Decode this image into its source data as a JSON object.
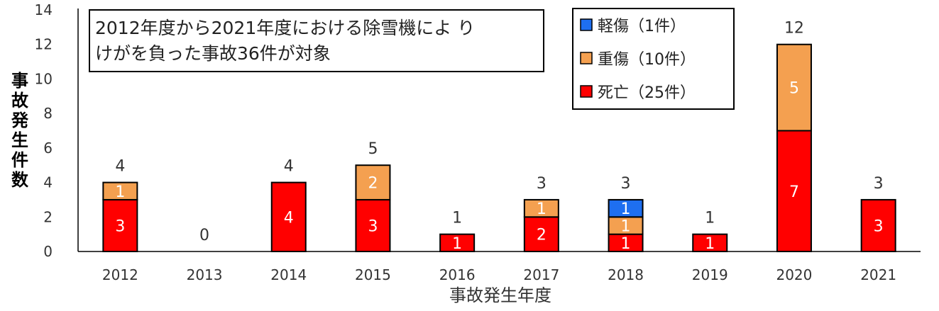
{
  "chart_data": {
    "type": "bar",
    "stacked": true,
    "categories": [
      "2012",
      "2013",
      "2014",
      "2015",
      "2016",
      "2017",
      "2018",
      "2019",
      "2020",
      "2021"
    ],
    "series": [
      {
        "name": "死亡（25件）",
        "color": "#ff0000",
        "values": [
          3,
          0,
          4,
          3,
          1,
          2,
          1,
          1,
          7,
          3
        ]
      },
      {
        "name": "重傷（10件）",
        "color": "#f4a050",
        "values": [
          1,
          0,
          0,
          2,
          0,
          1,
          1,
          0,
          5,
          0
        ]
      },
      {
        "name": "軽傷（1件）",
        "color": "#1e6ff0",
        "values": [
          0,
          0,
          0,
          0,
          0,
          0,
          1,
          0,
          0,
          0
        ]
      }
    ],
    "totals": [
      4,
      0,
      4,
      5,
      1,
      3,
      3,
      1,
      12,
      3
    ],
    "xlabel": "事故発生年度",
    "ylabel": "事故発生件数",
    "ylim": [
      0,
      14
    ],
    "yticks": [
      0,
      2,
      4,
      6,
      8,
      10,
      12,
      14
    ],
    "grid": false,
    "legend_position": "top-right",
    "annotation": {
      "lines": [
        "2012年度から2021年度における除雪機によ り",
        "けがを負った事故36件が対象"
      ]
    }
  }
}
